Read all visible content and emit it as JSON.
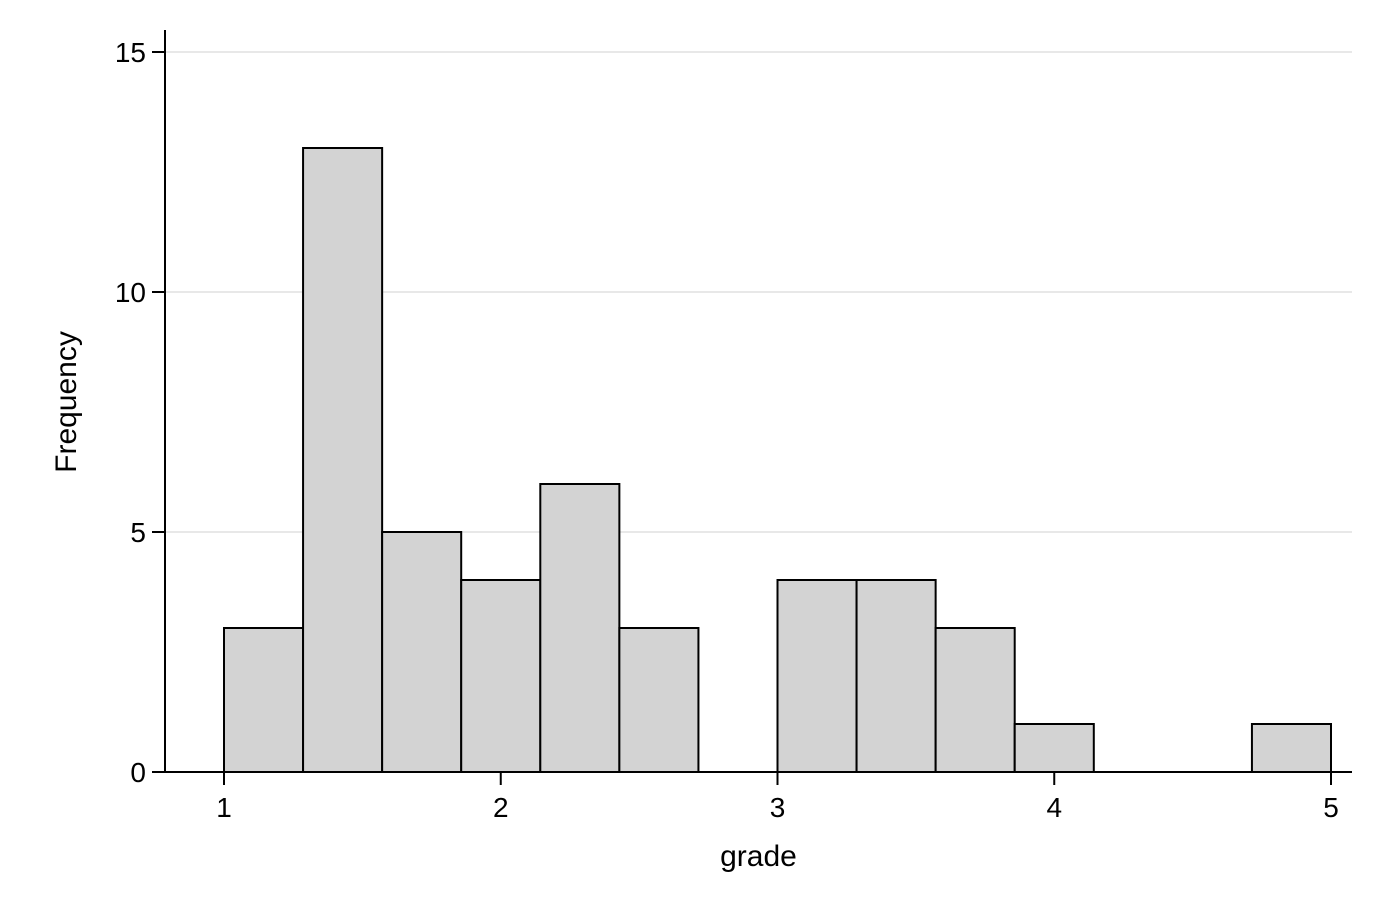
{
  "chart_data": {
    "type": "bar",
    "histogram": true,
    "xlabel": "grade",
    "ylabel": "Frequency",
    "xlim": [
      0.8,
      5.05
    ],
    "ylim": [
      0,
      15.5
    ],
    "xticks": [
      1,
      2,
      3,
      4,
      5
    ],
    "yticks": [
      0,
      5,
      10,
      15
    ],
    "grid": "horizontal",
    "bar_color": "#d3d3d3",
    "bar_edge_color": "#000000",
    "bins": [
      {
        "start": 1.0,
        "end": 1.2857,
        "value": 3
      },
      {
        "start": 1.2857,
        "end": 1.5714,
        "value": 13
      },
      {
        "start": 1.5714,
        "end": 1.8571,
        "value": 5
      },
      {
        "start": 1.8571,
        "end": 2.1429,
        "value": 4
      },
      {
        "start": 2.1429,
        "end": 2.4286,
        "value": 6
      },
      {
        "start": 2.4286,
        "end": 2.7143,
        "value": 3
      },
      {
        "start": 2.7143,
        "end": 3.0,
        "value": 0
      },
      {
        "start": 3.0,
        "end": 3.2857,
        "value": 4
      },
      {
        "start": 3.2857,
        "end": 3.5714,
        "value": 4
      },
      {
        "start": 3.5714,
        "end": 3.8571,
        "value": 3
      },
      {
        "start": 3.8571,
        "end": 4.1429,
        "value": 1
      },
      {
        "start": 4.1429,
        "end": 4.4286,
        "value": 0
      },
      {
        "start": 4.4286,
        "end": 4.7143,
        "value": 0
      },
      {
        "start": 4.7143,
        "end": 5.0,
        "value": 1
      }
    ]
  }
}
